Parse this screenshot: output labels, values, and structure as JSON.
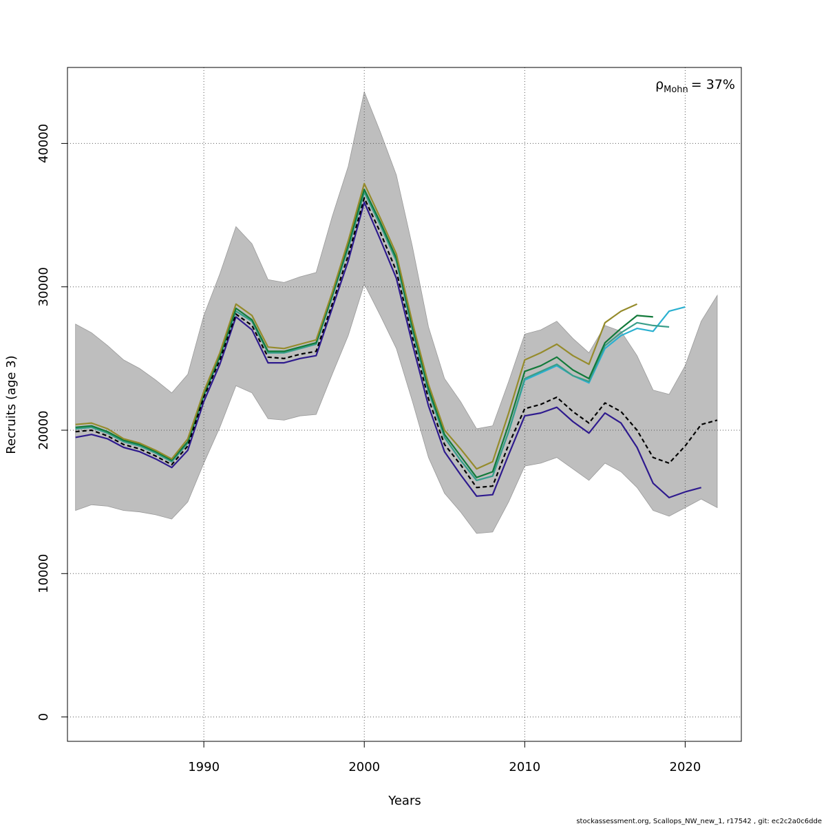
{
  "chart_data": {
    "type": "line",
    "xlabel": "Years",
    "ylabel": "Recruits (age 3)",
    "xlim": [
      1981.5,
      2023.5
    ],
    "ylim": [
      -1700,
      45300
    ],
    "xticks": [
      1990,
      2000,
      2010,
      2020
    ],
    "yticks": [
      0,
      10000,
      20000,
      30000,
      40000
    ],
    "xtick_labels": [
      "1990",
      "2000",
      "2010",
      "2020"
    ],
    "ytick_labels": [
      "0",
      "10000",
      "20000",
      "30000",
      "40000"
    ],
    "grid": true,
    "annotation": {
      "rho_symbol": "ρ",
      "rho_subscript": "Mohn",
      "rho_value": "= 37%"
    },
    "footer": "stockassessment.org, Scallops_NW_new_1, r17542 , git: ec2c2a0c6dde",
    "confidence_band": {
      "color": "#bebebe",
      "x": [
        1982,
        1983,
        1984,
        1985,
        1986,
        1987,
        1988,
        1989,
        1990,
        1991,
        1992,
        1993,
        1994,
        1995,
        1996,
        1997,
        1998,
        1999,
        2000,
        2001,
        2002,
        2003,
        2004,
        2005,
        2006,
        2007,
        2008,
        2009,
        2010,
        2011,
        2012,
        2013,
        2014,
        2015,
        2016,
        2017,
        2018,
        2019,
        2020,
        2021,
        2022
      ],
      "upper": [
        27400,
        26800,
        25900,
        24900,
        24300,
        23500,
        22600,
        23900,
        28000,
        30900,
        34200,
        33000,
        30500,
        30300,
        30700,
        31000,
        34900,
        38400,
        43600,
        40800,
        37800,
        32800,
        27200,
        23600,
        22000,
        20100,
        20300,
        23400,
        26700,
        27000,
        27600,
        26400,
        25400,
        27300,
        26900,
        25200,
        22800,
        22500,
        24500,
        27600,
        29400
      ],
      "lower": [
        14400,
        14800,
        14700,
        14400,
        14300,
        14100,
        13800,
        15000,
        17700,
        20200,
        23100,
        22600,
        20800,
        20700,
        21000,
        21100,
        23900,
        26600,
        30200,
        28000,
        25700,
        22000,
        18100,
        15600,
        14300,
        12800,
        12900,
        15000,
        17500,
        17700,
        18100,
        17300,
        16500,
        17700,
        17100,
        16000,
        14400,
        14000,
        14600,
        15200,
        14600
      ]
    },
    "series": [
      {
        "color": "#000000",
        "dashed": true,
        "x": [
          1982,
          1983,
          1984,
          1985,
          1986,
          1987,
          1988,
          1989,
          1990,
          1991,
          1992,
          1993,
          1994,
          1995,
          1996,
          1997,
          1998,
          1999,
          2000,
          2001,
          2002,
          2003,
          2004,
          2005,
          2006,
          2007,
          2008,
          2009,
          2010,
          2011,
          2012,
          2013,
          2014,
          2015,
          2016,
          2017,
          2018,
          2019,
          2020,
          2021,
          2022
        ],
        "values": [
          19900,
          20000,
          19600,
          19000,
          18700,
          18200,
          17600,
          18900,
          22300,
          24900,
          28100,
          27300,
          25100,
          25000,
          25300,
          25500,
          28800,
          32200,
          36200,
          33800,
          31100,
          26500,
          22200,
          19000,
          17600,
          16000,
          16100,
          19000,
          21500,
          21800,
          22300,
          21300,
          20500,
          21900,
          21300,
          20000,
          18100,
          17700,
          18900,
          20400,
          20700
        ]
      },
      {
        "color": "#2e1a8e",
        "x": [
          1982,
          1983,
          1984,
          1985,
          1986,
          1987,
          1988,
          1989,
          1990,
          1991,
          1992,
          1993,
          1994,
          1995,
          1996,
          1997,
          1998,
          1999,
          2000,
          2001,
          2002,
          2003,
          2004,
          2005,
          2006,
          2007,
          2008,
          2009,
          2010,
          2011,
          2012,
          2013,
          2014,
          2015,
          2016,
          2017,
          2018,
          2019,
          2020,
          2021
        ],
        "values": [
          19500,
          19700,
          19400,
          18800,
          18500,
          18000,
          17400,
          18600,
          22000,
          24600,
          27900,
          27000,
          24700,
          24700,
          25000,
          25200,
          28500,
          31800,
          35900,
          33300,
          30600,
          26000,
          21700,
          18500,
          16900,
          15400,
          15500,
          18300,
          21000,
          21200,
          21600,
          20600,
          19800,
          21200,
          20500,
          18800,
          16300,
          15300,
          15700,
          16000
        ]
      },
      {
        "color": "#2ab0d0",
        "x": [
          1982,
          1983,
          1984,
          1985,
          1986,
          1987,
          1988,
          1989,
          1990,
          1991,
          1992,
          1993,
          1994,
          1995,
          1996,
          1997,
          1998,
          1999,
          2000,
          2001,
          2002,
          2003,
          2004,
          2005,
          2006,
          2007,
          2008,
          2009,
          2010,
          2011,
          2012,
          2013,
          2014,
          2015,
          2016,
          2017,
          2018,
          2019,
          2020
        ],
        "values": [
          20100,
          20200,
          19800,
          19200,
          18900,
          18400,
          17800,
          19100,
          22400,
          25100,
          28300,
          27600,
          25400,
          25400,
          25700,
          26000,
          29300,
          32700,
          36600,
          34300,
          31800,
          27000,
          22700,
          19500,
          17900,
          16500,
          16800,
          19900,
          23500,
          24000,
          24500,
          23800,
          23300,
          25700,
          26600,
          27100,
          26900,
          28300,
          28600
        ]
      },
      {
        "color": "#3a9e8a",
        "x": [
          1982,
          1983,
          1984,
          1985,
          1986,
          1987,
          1988,
          1989,
          1990,
          1991,
          1992,
          1993,
          1994,
          1995,
          1996,
          1997,
          1998,
          1999,
          2000,
          2001,
          2002,
          2003,
          2004,
          2005,
          2006,
          2007,
          2008,
          2009,
          2010,
          2011,
          2012,
          2013,
          2014,
          2015,
          2016,
          2017,
          2018,
          2019
        ],
        "values": [
          20100,
          20200,
          19800,
          19200,
          18900,
          18400,
          17800,
          19100,
          22400,
          25100,
          28300,
          27600,
          25400,
          25400,
          25700,
          26000,
          29300,
          32700,
          36600,
          34300,
          31800,
          27000,
          22700,
          19500,
          17900,
          16500,
          16800,
          19900,
          23600,
          24100,
          24600,
          23800,
          23400,
          25900,
          26800,
          27500,
          27300,
          27200
        ]
      },
      {
        "color": "#127a3a",
        "x": [
          1982,
          1983,
          1984,
          1985,
          1986,
          1987,
          1988,
          1989,
          1990,
          1991,
          1992,
          1993,
          1994,
          1995,
          1996,
          1997,
          1998,
          1999,
          2000,
          2001,
          2002,
          2003,
          2004,
          2005,
          2006,
          2007,
          2008,
          2009,
          2010,
          2011,
          2012,
          2013,
          2014,
          2015,
          2016,
          2017,
          2018
        ],
        "values": [
          20200,
          20300,
          19900,
          19300,
          19000,
          18500,
          17900,
          19200,
          22500,
          25200,
          28500,
          27700,
          25500,
          25500,
          25800,
          26100,
          29400,
          32900,
          36800,
          34500,
          32000,
          27200,
          22900,
          19700,
          18200,
          16700,
          17100,
          20400,
          24100,
          24500,
          25100,
          24200,
          23600,
          26100,
          27100,
          28000,
          27900
        ]
      },
      {
        "color": "#958b2b",
        "x": [
          1982,
          1983,
          1984,
          1985,
          1986,
          1987,
          1988,
          1989,
          1990,
          1991,
          1992,
          1993,
          1994,
          1995,
          1996,
          1997,
          1998,
          1999,
          2000,
          2001,
          2002,
          2003,
          2004,
          2005,
          2006,
          2007,
          2008,
          2009,
          2010,
          2011,
          2012,
          2013,
          2014,
          2015,
          2016,
          2017
        ],
        "values": [
          20400,
          20500,
          20100,
          19400,
          19100,
          18600,
          18000,
          19400,
          22700,
          25400,
          28800,
          28000,
          25800,
          25700,
          26000,
          26300,
          29600,
          33200,
          37200,
          34800,
          32300,
          27500,
          23200,
          20000,
          18700,
          17300,
          17800,
          21200,
          24900,
          25400,
          26000,
          25200,
          24600,
          27500,
          28300,
          28800
        ]
      }
    ]
  }
}
